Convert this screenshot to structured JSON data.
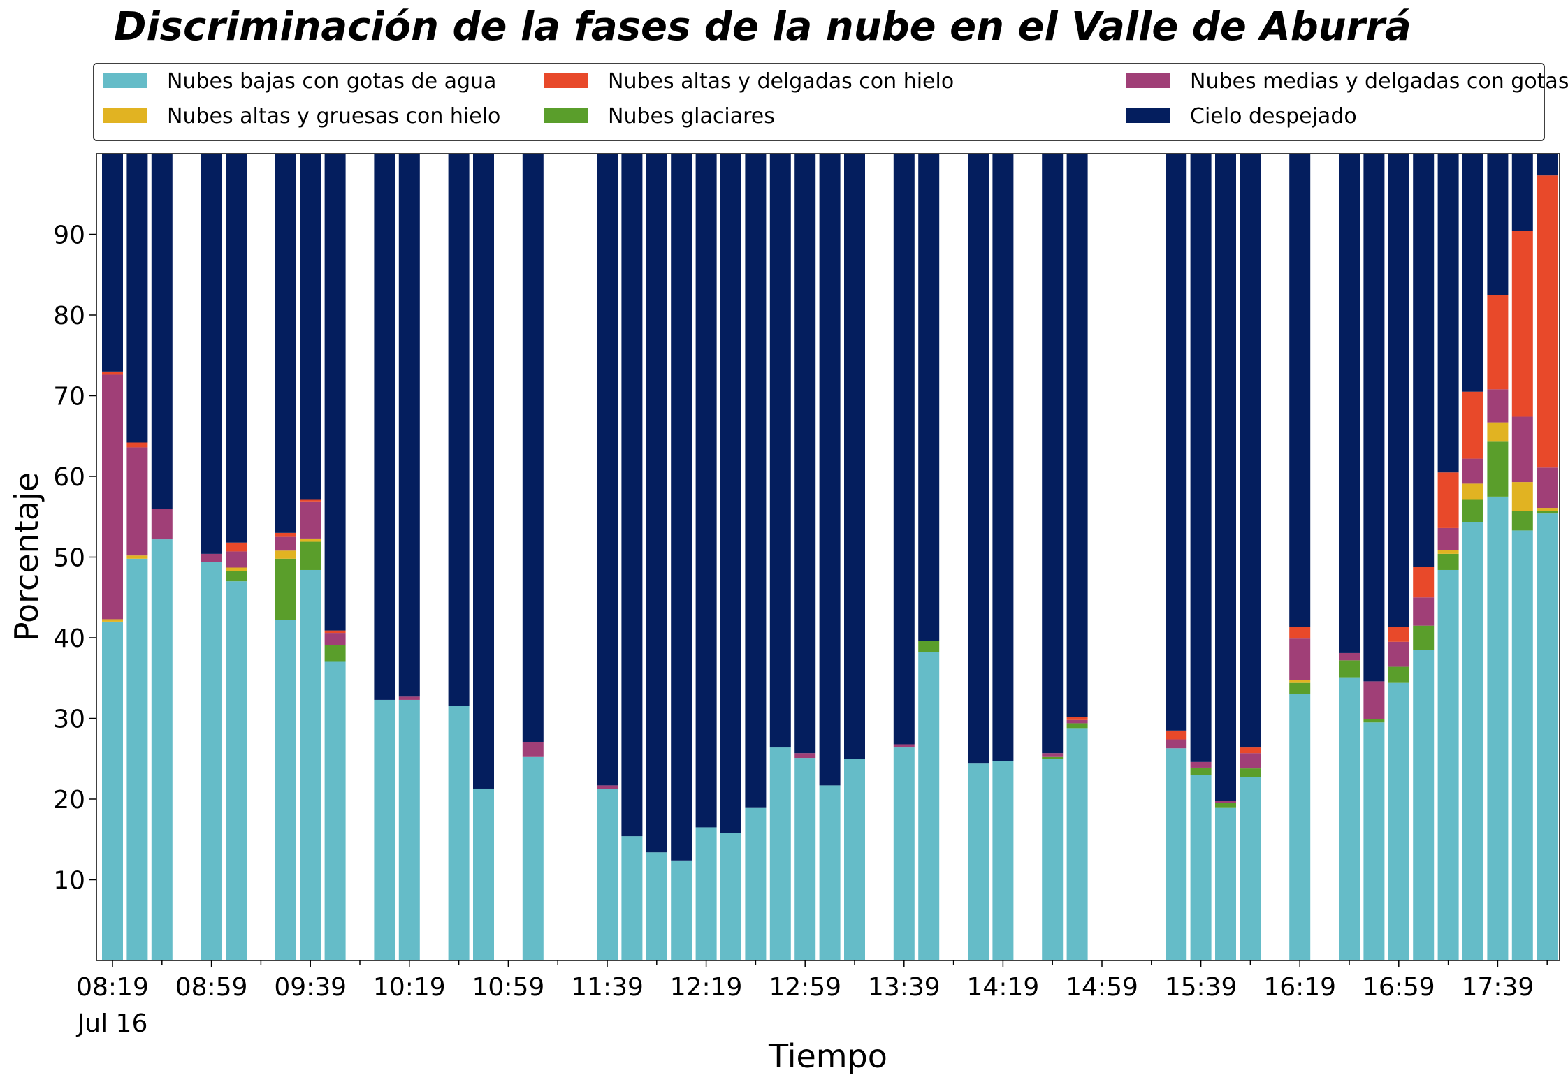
{
  "chart_data": {
    "type": "bar",
    "stacked": true,
    "title": "Discriminación de la fases de la nube en el Valle de Aburrá",
    "xlabel": "Tiempo",
    "ylabel": "Porcentaje",
    "ylim": [
      0,
      100
    ],
    "yticks": [
      10,
      20,
      30,
      40,
      50,
      60,
      70,
      80,
      90
    ],
    "xticks": [
      {
        "slot": 0,
        "label": "08:19",
        "sublabel": "Jul 16"
      },
      {
        "slot": 4,
        "label": "08:59",
        "sublabel": ""
      },
      {
        "slot": 8,
        "label": "09:39",
        "sublabel": ""
      },
      {
        "slot": 12,
        "label": "10:19",
        "sublabel": ""
      },
      {
        "slot": 16,
        "label": "10:59",
        "sublabel": ""
      },
      {
        "slot": 20,
        "label": "11:39",
        "sublabel": ""
      },
      {
        "slot": 24,
        "label": "12:19",
        "sublabel": ""
      },
      {
        "slot": 28,
        "label": "12:59",
        "sublabel": ""
      },
      {
        "slot": 32,
        "label": "13:39",
        "sublabel": ""
      },
      {
        "slot": 36,
        "label": "14:19",
        "sublabel": ""
      },
      {
        "slot": 40,
        "label": "14:59",
        "sublabel": ""
      },
      {
        "slot": 44,
        "label": "15:39",
        "sublabel": ""
      },
      {
        "slot": 48,
        "label": "16:19",
        "sublabel": ""
      },
      {
        "slot": 52,
        "label": "16:59",
        "sublabel": ""
      },
      {
        "slot": 56,
        "label": "17:39",
        "sublabel": ""
      }
    ],
    "grid": false,
    "legend_position": "top, three columns",
    "series": [
      {
        "name": "Nubes bajas con gotas de agua",
        "color": "#65bcc8"
      },
      {
        "name": "Nubes glaciares",
        "color": "#5a9e2b"
      },
      {
        "name": "Nubes altas y gruesas con hielo",
        "color": "#e1b322"
      },
      {
        "name": "Nubes medias y delgadas con gotas de agua",
        "color": "#a03f77"
      },
      {
        "name": "Nubes altas y delgadas con hielo",
        "color": "#e8492a"
      },
      {
        "name": "Cielo despejado",
        "color": "#041e5e"
      }
    ],
    "legend_order": [
      0,
      2,
      4,
      1,
      3,
      5
    ],
    "bars": [
      {
        "slot": 0,
        "values": [
          42.0,
          0.0,
          0.3,
          30.3,
          0.4,
          27.0
        ]
      },
      {
        "slot": 1,
        "values": [
          49.8,
          0.0,
          0.4,
          13.4,
          0.6,
          35.8
        ]
      },
      {
        "slot": 2,
        "values": [
          52.2,
          0.0,
          0.0,
          3.8,
          0.0,
          44.0
        ]
      },
      {
        "slot": 4,
        "values": [
          49.4,
          0.0,
          0.0,
          1.0,
          0.0,
          49.6
        ]
      },
      {
        "slot": 5,
        "values": [
          47.0,
          1.3,
          0.4,
          2.0,
          1.1,
          48.2
        ]
      },
      {
        "slot": 7,
        "values": [
          42.2,
          7.6,
          1.0,
          1.7,
          0.5,
          47.0
        ]
      },
      {
        "slot": 8,
        "values": [
          48.4,
          3.5,
          0.4,
          4.6,
          0.2,
          42.9
        ]
      },
      {
        "slot": 9,
        "values": [
          37.1,
          2.0,
          0.0,
          1.5,
          0.3,
          59.1
        ]
      },
      {
        "slot": 11,
        "values": [
          32.3,
          0.0,
          0.0,
          0.0,
          0.0,
          67.7
        ]
      },
      {
        "slot": 12,
        "values": [
          32.3,
          0.0,
          0.0,
          0.4,
          0.0,
          67.3
        ]
      },
      {
        "slot": 14,
        "values": [
          31.6,
          0.0,
          0.0,
          0.0,
          0.0,
          68.4
        ]
      },
      {
        "slot": 15,
        "values": [
          21.3,
          0.0,
          0.0,
          0.0,
          0.0,
          78.7
        ]
      },
      {
        "slot": 17,
        "values": [
          25.3,
          0.0,
          0.0,
          1.8,
          0.0,
          72.9
        ]
      },
      {
        "slot": 20,
        "values": [
          21.3,
          0.0,
          0.0,
          0.4,
          0.0,
          78.3
        ]
      },
      {
        "slot": 21,
        "values": [
          15.4,
          0.0,
          0.0,
          0.0,
          0.0,
          84.6
        ]
      },
      {
        "slot": 22,
        "values": [
          13.4,
          0.0,
          0.0,
          0.0,
          0.0,
          86.6
        ]
      },
      {
        "slot": 23,
        "values": [
          12.4,
          0.0,
          0.0,
          0.0,
          0.0,
          87.6
        ]
      },
      {
        "slot": 24,
        "values": [
          16.5,
          0.0,
          0.0,
          0.0,
          0.0,
          83.5
        ]
      },
      {
        "slot": 25,
        "values": [
          15.8,
          0.0,
          0.0,
          0.0,
          0.0,
          84.2
        ]
      },
      {
        "slot": 26,
        "values": [
          18.9,
          0.0,
          0.0,
          0.0,
          0.0,
          81.1
        ]
      },
      {
        "slot": 27,
        "values": [
          26.4,
          0.0,
          0.0,
          0.0,
          0.0,
          73.6
        ]
      },
      {
        "slot": 28,
        "values": [
          25.1,
          0.0,
          0.0,
          0.6,
          0.0,
          74.3
        ]
      },
      {
        "slot": 29,
        "values": [
          21.7,
          0.0,
          0.0,
          0.0,
          0.0,
          78.3
        ]
      },
      {
        "slot": 30,
        "values": [
          25.0,
          0.0,
          0.0,
          0.0,
          0.0,
          75.0
        ]
      },
      {
        "slot": 32,
        "values": [
          26.4,
          0.0,
          0.0,
          0.4,
          0.0,
          73.2
        ]
      },
      {
        "slot": 33,
        "values": [
          38.2,
          1.4,
          0.0,
          0.0,
          0.0,
          60.4
        ]
      },
      {
        "slot": 35,
        "values": [
          24.4,
          0.0,
          0.0,
          0.0,
          0.0,
          75.6
        ]
      },
      {
        "slot": 36,
        "values": [
          24.7,
          0.0,
          0.0,
          0.0,
          0.0,
          75.3
        ]
      },
      {
        "slot": 38,
        "values": [
          25.0,
          0.3,
          0.0,
          0.4,
          0.0,
          74.3
        ]
      },
      {
        "slot": 39,
        "values": [
          28.8,
          0.6,
          0.0,
          0.4,
          0.4,
          69.8
        ]
      },
      {
        "slot": 43,
        "values": [
          26.3,
          0.0,
          0.0,
          1.1,
          1.1,
          71.5
        ]
      },
      {
        "slot": 44,
        "values": [
          23.0,
          0.9,
          0.0,
          0.7,
          0.0,
          75.4
        ]
      },
      {
        "slot": 45,
        "values": [
          18.9,
          0.6,
          0.0,
          0.3,
          0.0,
          80.2
        ]
      },
      {
        "slot": 46,
        "values": [
          22.7,
          1.1,
          0.0,
          1.9,
          0.7,
          73.6
        ]
      },
      {
        "slot": 48,
        "values": [
          33.0,
          1.4,
          0.4,
          5.1,
          1.4,
          58.7
        ]
      },
      {
        "slot": 50,
        "values": [
          35.1,
          2.1,
          0.0,
          0.9,
          0.0,
          61.9
        ]
      },
      {
        "slot": 51,
        "values": [
          29.5,
          0.4,
          0.0,
          4.7,
          0.0,
          65.4
        ]
      },
      {
        "slot": 52,
        "values": [
          34.4,
          2.0,
          0.0,
          3.1,
          1.8,
          58.7
        ]
      },
      {
        "slot": 53,
        "values": [
          38.5,
          3.0,
          0.0,
          3.5,
          3.8,
          51.2
        ]
      },
      {
        "slot": 54,
        "values": [
          48.4,
          2.0,
          0.5,
          2.7,
          6.9,
          39.5
        ]
      },
      {
        "slot": 55,
        "values": [
          54.3,
          2.8,
          2.0,
          3.1,
          8.3,
          29.5
        ]
      },
      {
        "slot": 56,
        "values": [
          57.5,
          6.8,
          2.4,
          4.1,
          11.7,
          17.5
        ]
      },
      {
        "slot": 57,
        "values": [
          53.3,
          2.4,
          3.6,
          8.1,
          23.0,
          9.6
        ]
      },
      {
        "slot": 58,
        "values": [
          55.4,
          0.3,
          0.4,
          5.0,
          36.2,
          2.7
        ]
      }
    ]
  }
}
